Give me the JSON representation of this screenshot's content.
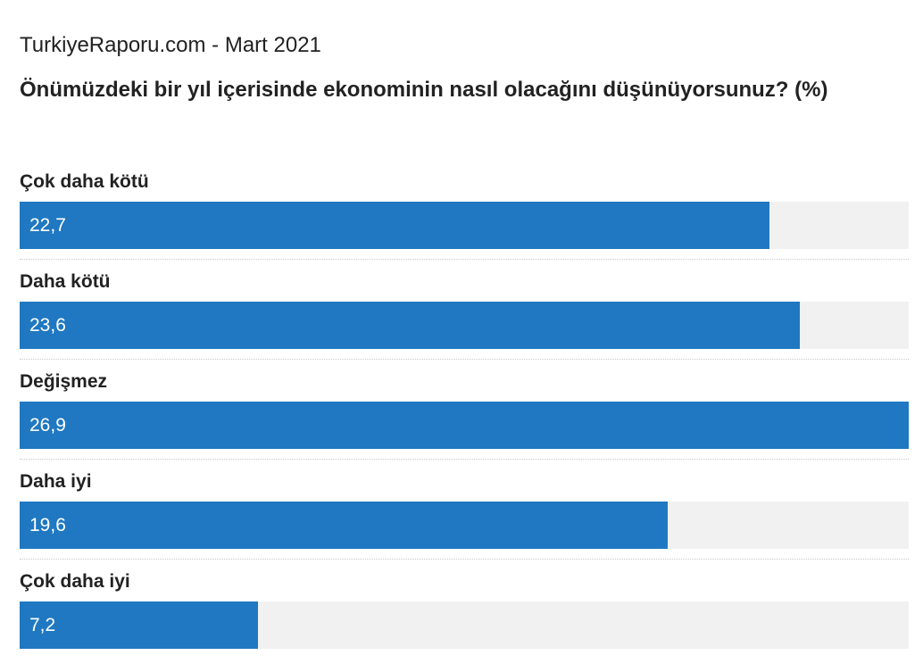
{
  "chart_data": {
    "type": "bar",
    "orientation": "horizontal",
    "source": "TurkiyeRaporu.com - Mart 2021",
    "title": "Önümüzdeki bir yıl içerisinde ekonominin nasıl olacağını düşünüyorsunuz? (%)",
    "categories": [
      "Çok daha kötü",
      "Daha kötü",
      "Değişmez",
      "Daha iyi",
      "Çok daha iyi"
    ],
    "values": [
      22.7,
      23.6,
      26.9,
      19.6,
      7.2
    ],
    "value_labels": [
      "22,7",
      "23,6",
      "26,9",
      "19,6",
      "7,2"
    ],
    "xlim": [
      0,
      26.9
    ],
    "legend": "none",
    "grid": false,
    "colors": {
      "bar": "#1f78c1",
      "track": "#f1f1f1",
      "value_text": "#ffffff",
      "divider": "#c9c9c9"
    }
  }
}
